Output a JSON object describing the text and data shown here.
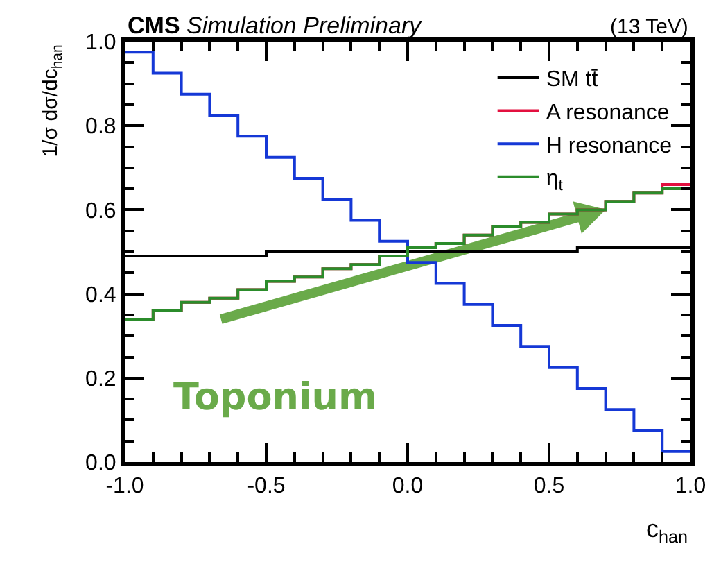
{
  "chart_data": {
    "type": "histogram",
    "title": "CMS",
    "subtitle": "Simulation Preliminary",
    "xlabel": "c$_{han}$",
    "ylabel": "1/σ dσ/dc$_{han}$",
    "annotations": [
      "(13 TeV)",
      "Toponium"
    ],
    "bins": [
      -1.0,
      -0.9,
      -0.8,
      -0.7,
      -0.6,
      -0.5,
      -0.4,
      -0.3,
      -0.2,
      -0.1,
      0.0,
      0.1,
      0.2,
      0.3,
      0.4,
      0.5,
      0.6,
      0.7,
      0.8,
      0.9,
      1.0
    ],
    "series": [
      {
        "name": "SM tt̄",
        "color": "#000000",
        "values": [
          0.49,
          0.49,
          0.49,
          0.49,
          0.49,
          0.5,
          0.5,
          0.5,
          0.5,
          0.5,
          0.5,
          0.5,
          0.5,
          0.5,
          0.5,
          0.5,
          0.51,
          0.51,
          0.51,
          0.51
        ]
      },
      {
        "name": "A resonance",
        "color": "#e3103f",
        "values": [
          0.34,
          0.36,
          0.38,
          0.39,
          0.41,
          0.43,
          0.44,
          0.46,
          0.47,
          0.49,
          0.51,
          0.52,
          0.54,
          0.56,
          0.57,
          0.59,
          0.6,
          0.62,
          0.64,
          0.66
        ]
      },
      {
        "name": "H resonance",
        "color": "#1538d6",
        "values": [
          0.975,
          0.925,
          0.875,
          0.825,
          0.775,
          0.725,
          0.675,
          0.625,
          0.575,
          0.525,
          0.475,
          0.425,
          0.375,
          0.325,
          0.275,
          0.225,
          0.175,
          0.125,
          0.075,
          0.025
        ]
      },
      {
        "name": "η$_{t}$",
        "color": "#2b8c2b",
        "values": [
          0.34,
          0.36,
          0.38,
          0.39,
          0.41,
          0.43,
          0.44,
          0.46,
          0.47,
          0.49,
          0.51,
          0.52,
          0.54,
          0.56,
          0.57,
          0.59,
          0.6,
          0.62,
          0.64,
          0.65
        ]
      }
    ],
    "xlim": [
      -1.0,
      1.0
    ],
    "xticks": [
      {
        "value": -1.0,
        "label": "-1.0"
      },
      {
        "value": -0.5,
        "label": "-0.5"
      },
      {
        "value": 0.0,
        "label": "0.0"
      },
      {
        "value": 0.5,
        "label": "0.5"
      },
      {
        "value": 1.0,
        "label": "1.0"
      }
    ],
    "ylim": [
      0.0,
      1.0
    ],
    "yticks": [
      {
        "value": 0.0,
        "label": "0.0"
      },
      {
        "value": 0.2,
        "label": "0.2"
      },
      {
        "value": 0.4,
        "label": "0.4"
      },
      {
        "value": 0.6,
        "label": "0.6"
      },
      {
        "value": 0.8,
        "label": "0.8"
      },
      {
        "value": 1.0,
        "label": "1.0"
      }
    ],
    "grid": false,
    "legend": "top right"
  }
}
